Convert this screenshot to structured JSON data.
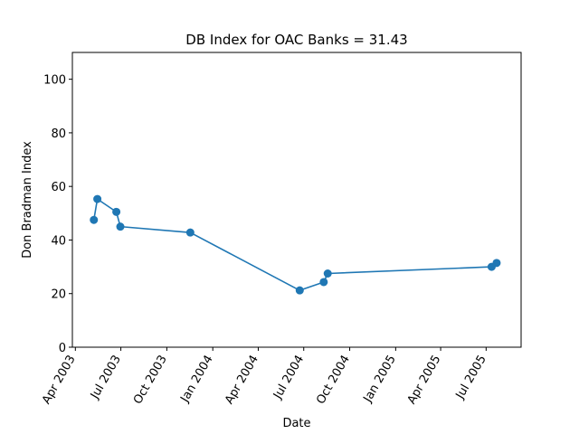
{
  "chart_data": {
    "type": "line",
    "title": "DB Index for OAC Banks = 31.43",
    "xlabel": "Date",
    "ylabel": "Don Bradman Index",
    "ylim": [
      0,
      110
    ],
    "yticks": [
      0,
      20,
      40,
      60,
      80,
      100
    ],
    "xlim": [
      "2003-03-26",
      "2005-09-09"
    ],
    "xticks": [
      {
        "date": "2003-04-01",
        "label": "Apr 2003"
      },
      {
        "date": "2003-07-01",
        "label": "Jul 2003"
      },
      {
        "date": "2003-10-01",
        "label": "Oct 2003"
      },
      {
        "date": "2004-01-01",
        "label": "Jan 2004"
      },
      {
        "date": "2004-04-01",
        "label": "Apr 2004"
      },
      {
        "date": "2004-07-01",
        "label": "Jul 2004"
      },
      {
        "date": "2004-10-01",
        "label": "Oct 2004"
      },
      {
        "date": "2005-01-01",
        "label": "Jan 2005"
      },
      {
        "date": "2005-04-01",
        "label": "Apr 2005"
      },
      {
        "date": "2005-07-01",
        "label": "Jul 2005"
      }
    ],
    "series": [
      {
        "name": "DB Index",
        "color": "#1f77b4",
        "x": [
          "2003-05-08",
          "2003-05-15",
          "2003-06-22",
          "2003-06-30",
          "2003-11-17",
          "2004-06-23",
          "2004-08-10",
          "2004-08-18",
          "2005-07-12",
          "2005-07-22"
        ],
        "values": [
          47.5,
          55.3,
          50.5,
          45.0,
          42.8,
          21.2,
          24.3,
          27.5,
          30.0,
          31.43
        ]
      }
    ]
  }
}
